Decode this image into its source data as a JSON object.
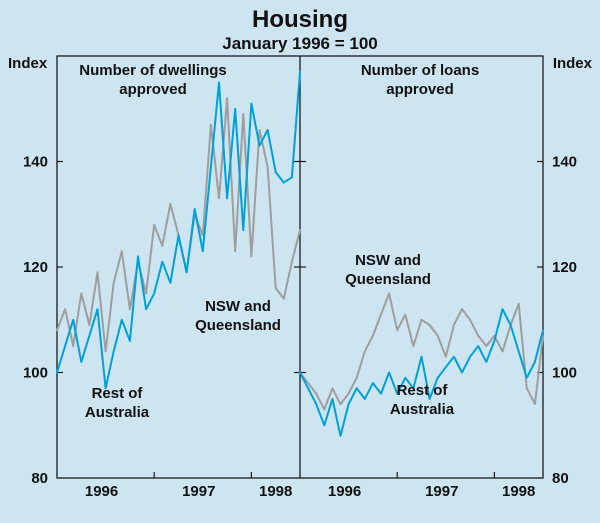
{
  "header": {
    "title": "Housing",
    "subtitle": "January 1996 = 100"
  },
  "axes": {
    "y_label": "Index",
    "ylim": [
      80,
      160
    ],
    "yticks": [
      80,
      100,
      120,
      140
    ],
    "x_year_labels": [
      "1996",
      "1997",
      "1998"
    ]
  },
  "colors": {
    "background": "#cde5f1",
    "grey_line": "#9e9e9e",
    "blue_line": "#00a0d8",
    "frame": "#1a1a1a",
    "text": "#111111"
  },
  "chart_data": [
    {
      "type": "line",
      "panel": "left",
      "title": "Number of dwellings\napproved",
      "x_start": "1996-01",
      "frequency": "monthly",
      "ylim": [
        80,
        160
      ],
      "yticks": [
        80,
        100,
        120,
        140
      ],
      "x_year_labels": [
        "1996",
        "1997",
        "1998"
      ],
      "series": [
        {
          "key": "nsw_qld",
          "name": "NSW and Queensland",
          "label": "NSW and\nQueensland",
          "color_key": "grey_line",
          "values": [
            108,
            112,
            105,
            115,
            109,
            119,
            104,
            117,
            123,
            112,
            121,
            115,
            128,
            124,
            132,
            126,
            119,
            130,
            126,
            147,
            133,
            152,
            123,
            149,
            122,
            146,
            139,
            116,
            114,
            121,
            127
          ]
        },
        {
          "key": "rest_aus",
          "name": "Rest of Australia",
          "label": "Rest of\nAustralia",
          "color_key": "blue_line",
          "values": [
            100,
            105,
            110,
            102,
            107,
            112,
            97,
            104,
            110,
            106,
            122,
            112,
            115,
            121,
            117,
            126,
            119,
            131,
            123,
            139,
            155,
            133,
            150,
            127,
            151,
            143,
            146,
            138,
            136,
            137,
            157
          ]
        }
      ]
    },
    {
      "type": "line",
      "panel": "right",
      "title": "Number of loans\napproved",
      "x_start": "1996-01",
      "frequency": "monthly",
      "ylim": [
        80,
        160
      ],
      "yticks": [
        80,
        100,
        120,
        140
      ],
      "x_year_labels": [
        "1996",
        "1997",
        "1998"
      ],
      "series": [
        {
          "key": "nsw_qld",
          "name": "NSW and Queensland",
          "label": "NSW and\nQueensland",
          "color_key": "grey_line",
          "values": [
            100,
            98,
            96,
            93,
            97,
            94,
            96,
            99,
            104,
            107,
            111,
            115,
            108,
            111,
            105,
            110,
            109,
            107,
            103,
            109,
            112,
            110,
            107,
            105,
            107,
            104,
            109,
            113,
            97,
            94,
            107
          ]
        },
        {
          "key": "rest_aus",
          "name": "Rest of Australia",
          "label": "Rest of\nAustralia",
          "color_key": "blue_line",
          "values": [
            100,
            97,
            94,
            90,
            95,
            88,
            94,
            97,
            95,
            98,
            96,
            100,
            96,
            99,
            97,
            103,
            95,
            99,
            101,
            103,
            100,
            103,
            105,
            102,
            106,
            112,
            109,
            104,
            99,
            102,
            108
          ]
        }
      ]
    }
  ]
}
